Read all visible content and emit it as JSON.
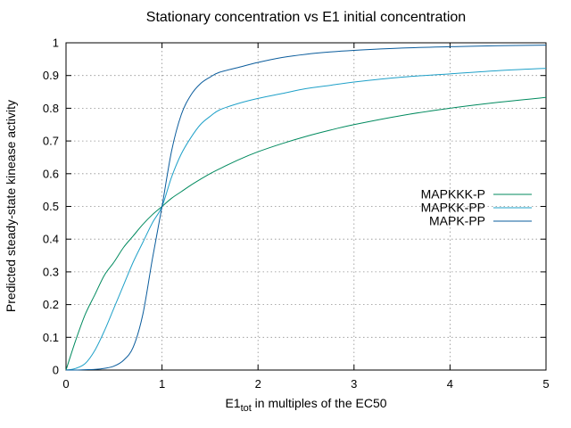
{
  "chart_data": {
    "type": "line",
    "title": "Stationary concentration vs E1 initial concentration",
    "xlabel_main": "E1",
    "xlabel_sub": "tot",
    "xlabel_rest": " in multiples of the EC50",
    "ylabel": "Predicted steady-state kinease activity",
    "xlim": [
      0,
      5
    ],
    "ylim": [
      0,
      1
    ],
    "xticks": [
      0,
      1,
      2,
      3,
      4,
      5
    ],
    "yticks": [
      0,
      0.1,
      0.2,
      0.3,
      0.4,
      0.5,
      0.6,
      0.7,
      0.8,
      0.9,
      1
    ],
    "ytick_labels": [
      "0",
      "0.1",
      "0.2",
      "0.3",
      "0.4",
      "0.5",
      "0.6",
      "0.7",
      "0.8",
      "0.9",
      "1"
    ],
    "xtick_labels": [
      "0",
      "1",
      "2",
      "3",
      "4",
      "5"
    ],
    "grid": "dotted",
    "legend_position": "right",
    "x": [
      0,
      0.1,
      0.2,
      0.3,
      0.4,
      0.5,
      0.6,
      0.7,
      0.8,
      0.9,
      1.0,
      1.1,
      1.2,
      1.3,
      1.4,
      1.5,
      1.6,
      1.8,
      2.0,
      2.25,
      2.5,
      2.75,
      3.0,
      3.5,
      4.0,
      4.5,
      5.0
    ],
    "series": [
      {
        "name": "MAPKKK-P",
        "color": "#008a5e",
        "values": [
          0,
          0.09,
          0.17,
          0.23,
          0.29,
          0.33,
          0.375,
          0.41,
          0.445,
          0.475,
          0.5,
          0.525,
          0.545,
          0.565,
          0.583,
          0.6,
          0.615,
          0.643,
          0.667,
          0.692,
          0.714,
          0.733,
          0.75,
          0.778,
          0.8,
          0.818,
          0.833
        ]
      },
      {
        "name": "MAPKK-PP",
        "color": "#1ea0c8",
        "values": [
          0,
          0.005,
          0.02,
          0.06,
          0.12,
          0.19,
          0.26,
          0.33,
          0.39,
          0.45,
          0.5,
          0.59,
          0.66,
          0.71,
          0.75,
          0.775,
          0.795,
          0.815,
          0.83,
          0.845,
          0.86,
          0.87,
          0.88,
          0.895,
          0.905,
          0.915,
          0.922
        ]
      },
      {
        "name": "MAPK-PP",
        "color": "#0a5c9c",
        "values": [
          0,
          0,
          0.001,
          0.002,
          0.005,
          0.012,
          0.03,
          0.07,
          0.17,
          0.34,
          0.5,
          0.67,
          0.78,
          0.84,
          0.875,
          0.895,
          0.91,
          0.925,
          0.94,
          0.955,
          0.965,
          0.972,
          0.977,
          0.984,
          0.988,
          0.991,
          0.993
        ]
      }
    ]
  }
}
